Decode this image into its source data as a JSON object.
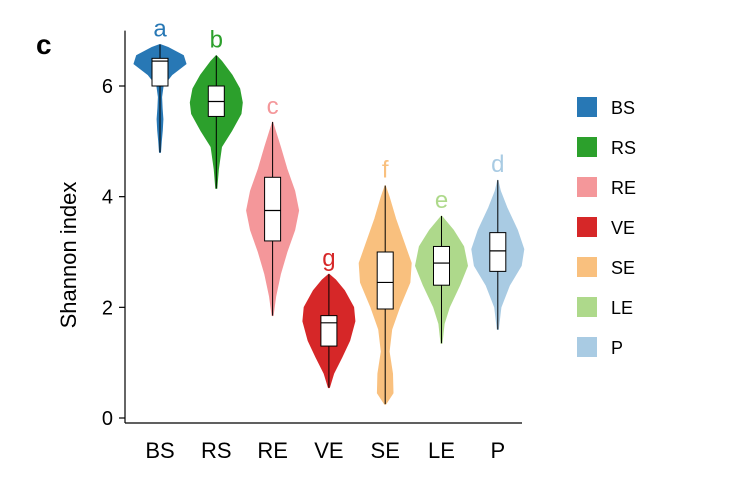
{
  "panel_label": "c",
  "chart_data": {
    "type": "violin",
    "title": "",
    "xlabel": "",
    "ylabel": "Shannon index",
    "ylim": [
      0,
      7
    ],
    "yticks": [
      0,
      2,
      4,
      6
    ],
    "categories": [
      "BS",
      "RS",
      "RE",
      "VE",
      "SE",
      "LE",
      "P"
    ],
    "groups": [
      {
        "name": "BS",
        "color": "#2878b5",
        "letter": "a",
        "min": 4.8,
        "q1": 6.0,
        "median": 6.45,
        "q3": 6.5,
        "max": 6.75,
        "density": [
          [
            4.8,
            0.02
          ],
          [
            5.0,
            0.05
          ],
          [
            5.2,
            0.09
          ],
          [
            5.4,
            0.11
          ],
          [
            5.6,
            0.08
          ],
          [
            5.8,
            0.06
          ],
          [
            6.0,
            0.12
          ],
          [
            6.2,
            0.45
          ],
          [
            6.4,
            1.0
          ],
          [
            6.55,
            0.9
          ],
          [
            6.7,
            0.3
          ],
          [
            6.75,
            0.0
          ]
        ]
      },
      {
        "name": "RS",
        "color": "#2ca02c",
        "letter": "b",
        "min": 4.15,
        "q1": 5.45,
        "median": 5.72,
        "q3": 6.0,
        "max": 6.55,
        "density": [
          [
            4.15,
            0.02
          ],
          [
            4.5,
            0.08
          ],
          [
            4.9,
            0.2
          ],
          [
            5.2,
            0.6
          ],
          [
            5.5,
            0.95
          ],
          [
            5.7,
            1.0
          ],
          [
            5.95,
            0.9
          ],
          [
            6.2,
            0.6
          ],
          [
            6.45,
            0.2
          ],
          [
            6.55,
            0.0
          ]
        ]
      },
      {
        "name": "RE",
        "color": "#f4979a",
        "letter": "c",
        "min": 1.85,
        "q1": 3.2,
        "median": 3.75,
        "q3": 4.35,
        "max": 5.35,
        "density": [
          [
            1.85,
            0.02
          ],
          [
            2.2,
            0.12
          ],
          [
            2.6,
            0.3
          ],
          [
            3.0,
            0.55
          ],
          [
            3.4,
            0.85
          ],
          [
            3.75,
            1.0
          ],
          [
            4.1,
            0.85
          ],
          [
            4.5,
            0.55
          ],
          [
            4.9,
            0.3
          ],
          [
            5.2,
            0.1
          ],
          [
            5.35,
            0.0
          ]
        ]
      },
      {
        "name": "VE",
        "color": "#d62728",
        "letter": "g",
        "min": 0.55,
        "q1": 1.3,
        "median": 1.72,
        "q3": 1.85,
        "max": 2.6,
        "density": [
          [
            0.55,
            0.02
          ],
          [
            0.8,
            0.18
          ],
          [
            1.1,
            0.5
          ],
          [
            1.4,
            0.8
          ],
          [
            1.75,
            1.0
          ],
          [
            2.0,
            0.95
          ],
          [
            2.3,
            0.6
          ],
          [
            2.5,
            0.25
          ],
          [
            2.6,
            0.0
          ]
        ]
      },
      {
        "name": "SE",
        "color": "#f9c07e",
        "letter": "f",
        "min": 0.25,
        "q1": 1.97,
        "median": 2.45,
        "q3": 3.0,
        "max": 4.2,
        "density": [
          [
            0.25,
            0.02
          ],
          [
            0.45,
            0.3
          ],
          [
            0.8,
            0.28
          ],
          [
            1.2,
            0.15
          ],
          [
            1.6,
            0.25
          ],
          [
            2.0,
            0.55
          ],
          [
            2.45,
            0.95
          ],
          [
            2.8,
            1.0
          ],
          [
            3.2,
            0.7
          ],
          [
            3.6,
            0.4
          ],
          [
            4.0,
            0.15
          ],
          [
            4.2,
            0.0
          ]
        ]
      },
      {
        "name": "LE",
        "color": "#aed98b",
        "letter": "e",
        "min": 1.35,
        "q1": 2.4,
        "median": 2.8,
        "q3": 3.1,
        "max": 3.65,
        "density": [
          [
            1.35,
            0.02
          ],
          [
            1.7,
            0.1
          ],
          [
            2.0,
            0.3
          ],
          [
            2.4,
            0.7
          ],
          [
            2.75,
            1.0
          ],
          [
            3.1,
            0.85
          ],
          [
            3.4,
            0.45
          ],
          [
            3.65,
            0.0
          ]
        ]
      },
      {
        "name": "P",
        "color": "#a9cbe3",
        "letter": "d",
        "min": 1.6,
        "q1": 2.65,
        "median": 3.02,
        "q3": 3.35,
        "max": 4.3,
        "density": [
          [
            1.6,
            0.02
          ],
          [
            2.0,
            0.12
          ],
          [
            2.4,
            0.45
          ],
          [
            2.75,
            0.9
          ],
          [
            3.05,
            1.0
          ],
          [
            3.4,
            0.75
          ],
          [
            3.8,
            0.35
          ],
          [
            4.1,
            0.1
          ],
          [
            4.3,
            0.0
          ]
        ]
      }
    ],
    "legend": {
      "placement": "right",
      "entries": [
        "BS",
        "RS",
        "RE",
        "VE",
        "SE",
        "LE",
        "P"
      ]
    }
  }
}
